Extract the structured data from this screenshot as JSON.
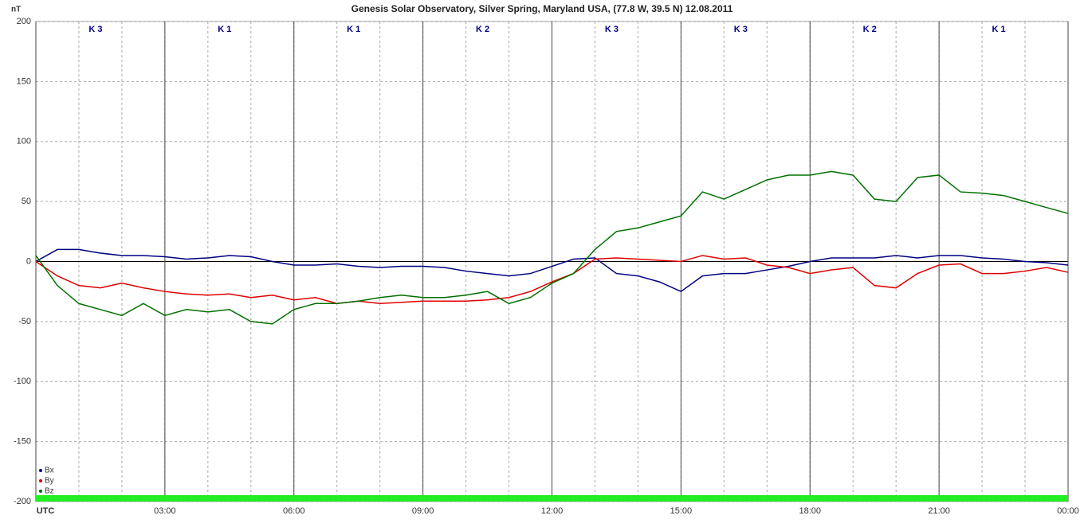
{
  "chart_data": {
    "type": "line",
    "title": "Genesis Solar Observatory, Silver Spring, Maryland USA, (77.8 W, 39.5 N)  12.08.2011",
    "y_label": "nT",
    "k_labels": [
      "K 3",
      "K 1",
      "K 1",
      "K 2",
      "K 3",
      "K 3",
      "K 2",
      "K 1"
    ],
    "x": [
      0,
      0.5,
      1,
      1.5,
      2,
      2.5,
      3,
      3.5,
      4,
      4.5,
      5,
      5.5,
      6,
      6.5,
      7,
      7.5,
      8,
      8.5,
      9,
      9.5,
      10,
      10.5,
      11,
      11.5,
      12,
      12.5,
      13,
      13.5,
      14,
      14.5,
      15,
      15.5,
      16,
      16.5,
      17,
      17.5,
      18,
      18.5,
      19,
      19.5,
      20,
      20.5,
      21,
      21.5,
      22,
      22.5,
      23,
      23.5,
      24
    ],
    "series": [
      {
        "name": "Bx",
        "color": "#000080",
        "values": [
          0,
          10,
          10,
          7,
          5,
          5,
          4,
          2,
          3,
          5,
          4,
          0,
          -3,
          -3,
          -2,
          -4,
          -5,
          -4,
          -4,
          -5,
          -8,
          -10,
          -12,
          -10,
          -4,
          2,
          3,
          -10,
          -12,
          -17,
          -25,
          -12,
          -10,
          -10,
          -7,
          -4,
          0,
          3,
          3,
          3,
          5,
          3,
          5,
          5,
          3,
          2,
          0,
          -1,
          -3
        ]
      },
      {
        "name": "By",
        "color": "#e00000",
        "values": [
          0,
          -12,
          -20,
          -22,
          -18,
          -22,
          -25,
          -27,
          -28,
          -27,
          -30,
          -28,
          -32,
          -30,
          -35,
          -33,
          -35,
          -34,
          -33,
          -33,
          -33,
          -32,
          -30,
          -25,
          -17,
          -10,
          2,
          3,
          2,
          1,
          0,
          5,
          2,
          3,
          -3,
          -5,
          -10,
          -7,
          -5,
          -20,
          -22,
          -10,
          -3,
          -2,
          -10,
          -10,
          -8,
          -5,
          -9
        ]
      },
      {
        "name": "Bz",
        "color": "#007000",
        "values": [
          5,
          -20,
          -35,
          -40,
          -45,
          -35,
          -45,
          -40,
          -42,
          -40,
          -50,
          -52,
          -40,
          -35,
          -35,
          -33,
          -30,
          -28,
          -30,
          -30,
          -28,
          -25,
          -35,
          -30,
          -18,
          -10,
          10,
          25,
          28,
          33,
          38,
          58,
          52,
          60,
          68,
          72,
          72,
          75,
          72,
          52,
          50,
          70,
          72,
          58,
          57,
          55,
          50,
          45,
          40
        ]
      }
    ],
    "xlim": [
      0,
      24
    ],
    "xticks": [
      {
        "value": 0,
        "label": "UTC"
      },
      {
        "value": 3,
        "label": "03:00"
      },
      {
        "value": 6,
        "label": "06:00"
      },
      {
        "value": 9,
        "label": "09:00"
      },
      {
        "value": 12,
        "label": "12:00"
      },
      {
        "value": 15,
        "label": "15:00"
      },
      {
        "value": 18,
        "label": "18:00"
      },
      {
        "value": 21,
        "label": "21:00"
      },
      {
        "value": 24,
        "label": "00:00"
      }
    ],
    "ylim": [
      -200,
      200
    ],
    "yticks": [
      -200,
      -150,
      -100,
      -50,
      0,
      50,
      100,
      150,
      200
    ],
    "grid": true
  }
}
